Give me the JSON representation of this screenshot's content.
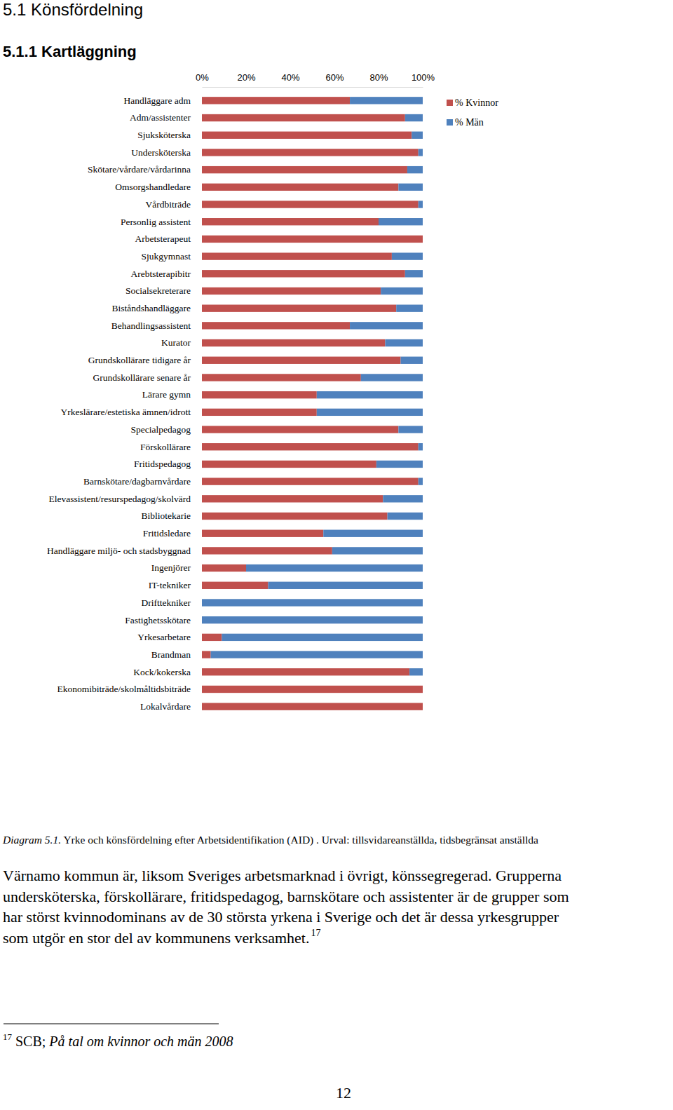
{
  "page": {
    "headings": [
      "5.1 Könsfördelning",
      "5.1.1 Kartläggning"
    ],
    "caption": {
      "label": "Diagram 5.1.",
      "text": " Yrke och könsfördelning efter Arbetsidentifikation (AID) . Urval: tillsvidareanställda, tidsbegränsat anställda"
    },
    "paragraph": {
      "lines": [
        "Värnamo kommun är, liksom Sveriges arbetsmarknad i övrigt, könssegregerad. Grupperna",
        "undersköterska, förskollärare, fritidspedagog, barnskötare och assistenter är de grupper som",
        "har störst kvinnodominans av de 30 största yrkena i Sverige och det är dessa yrkesgrupper",
        "som utgör en stor del av kommunens verksamhet."
      ],
      "footnote_ref": "17"
    },
    "footnote": {
      "number": "17",
      "source": " SCB; ",
      "title": "På tal om kvinnor och män 2008"
    },
    "page_number": "12"
  },
  "chart_data": {
    "type": "bar",
    "orientation": "horizontal",
    "stacked": true,
    "legend": "right",
    "grid": false,
    "categories": [
      "Handläggare adm",
      "Adm/assistenter",
      "Sjuksköterska",
      "Undersköterska",
      "Skötare/vårdare/vårdarinna",
      "Omsorgshandledare",
      "Vårdbiträde",
      "Personlig assistent",
      "Arbetsterapeut",
      "Sjukgymnast",
      "Arebtsterapibitr",
      "Socialsekreterare",
      "Biståndshandläggare",
      "Behandlingsassistent",
      "Kurator",
      "Grundskollärare tidigare år",
      "Grundskollärare senare år",
      "Lärare gymn",
      "Yrkeslärare/estetiska ämnen/idrott",
      "Specialpedagog",
      "Förskollärare",
      "Fritidspedagog",
      "Barnskötare/dagbarnvårdare",
      "Elevassistent/resurspedagog/skolvärd",
      "Bibliotekarie",
      "Fritidsledare",
      "Handläggare miljö- och stadsbyggnad",
      "Ingenjörer",
      "IT-tekniker",
      "Drifttekniker",
      "Fastighetsskötare",
      "Yrkesarbetare",
      "Brandman",
      "Kock/kokerska",
      "Ekonomibiträde/skolmåltidsbiträde",
      "Lokalvårdare"
    ],
    "series": [
      {
        "name": "% Kvinnor",
        "color": "#c0504d",
        "values": [
          67,
          92,
          95,
          98,
          93,
          89,
          98,
          80,
          100,
          86,
          92,
          81,
          88,
          67,
          83,
          90,
          72,
          52,
          52,
          89,
          98,
          79,
          98,
          82,
          84,
          55,
          59,
          20,
          30,
          0,
          0,
          9,
          4,
          94,
          100,
          100
        ]
      },
      {
        "name": "% Män",
        "color": "#4f81bd",
        "values": [
          33,
          8,
          5,
          2,
          7,
          11,
          2,
          20,
          0,
          14,
          8,
          19,
          12,
          33,
          17,
          10,
          28,
          48,
          48,
          11,
          2,
          21,
          2,
          18,
          16,
          45,
          41,
          80,
          70,
          100,
          100,
          91,
          96,
          6,
          0,
          0
        ]
      }
    ],
    "xlim": [
      0,
      100
    ],
    "xticks": [
      {
        "value": 0,
        "label": "0%"
      },
      {
        "value": 20,
        "label": "20%"
      },
      {
        "value": 40,
        "label": "40%"
      },
      {
        "value": 60,
        "label": "60%"
      },
      {
        "value": 80,
        "label": "80%"
      },
      {
        "value": 100,
        "label": "100%"
      }
    ]
  }
}
